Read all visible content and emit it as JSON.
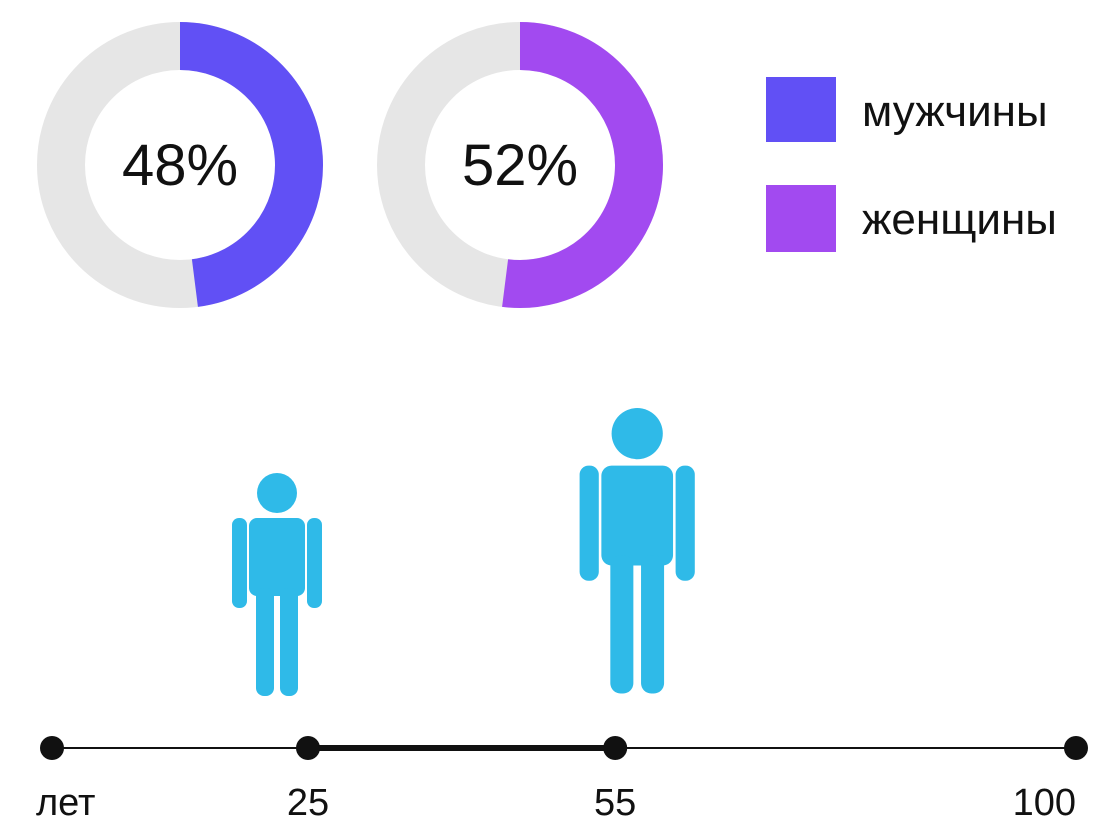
{
  "chart_data": [
    {
      "type": "pie",
      "variant": "donut",
      "series": [
        {
          "name": "мужчины",
          "value": 48,
          "label": "48%",
          "color": "#6150f5"
        }
      ],
      "track_color": "#e6e6e6"
    },
    {
      "type": "pie",
      "variant": "donut",
      "series": [
        {
          "name": "женщины",
          "value": 52,
          "label": "52%",
          "color": "#a24af0"
        }
      ],
      "track_color": "#e6e6e6"
    },
    {
      "type": "timeline",
      "unit_label": "лет",
      "axis_range": [
        0,
        100
      ],
      "ticks": [
        {
          "value": 0,
          "label": "лет"
        },
        {
          "value": 25,
          "label": "25"
        },
        {
          "value": 55,
          "label": "55"
        },
        {
          "value": 100,
          "label": "100"
        }
      ],
      "highlight_range": [
        25,
        55
      ],
      "people_icons": [
        {
          "name": "person-25-icon",
          "value": 25,
          "color": "#2fbae8"
        },
        {
          "name": "person-55-icon",
          "value": 55,
          "color": "#2fbae8"
        }
      ],
      "line_color": "#111111"
    }
  ],
  "legend": {
    "items": [
      {
        "label": "мужчины",
        "color": "#6150f5"
      },
      {
        "label": "женщины",
        "color": "#a24af0"
      }
    ]
  }
}
